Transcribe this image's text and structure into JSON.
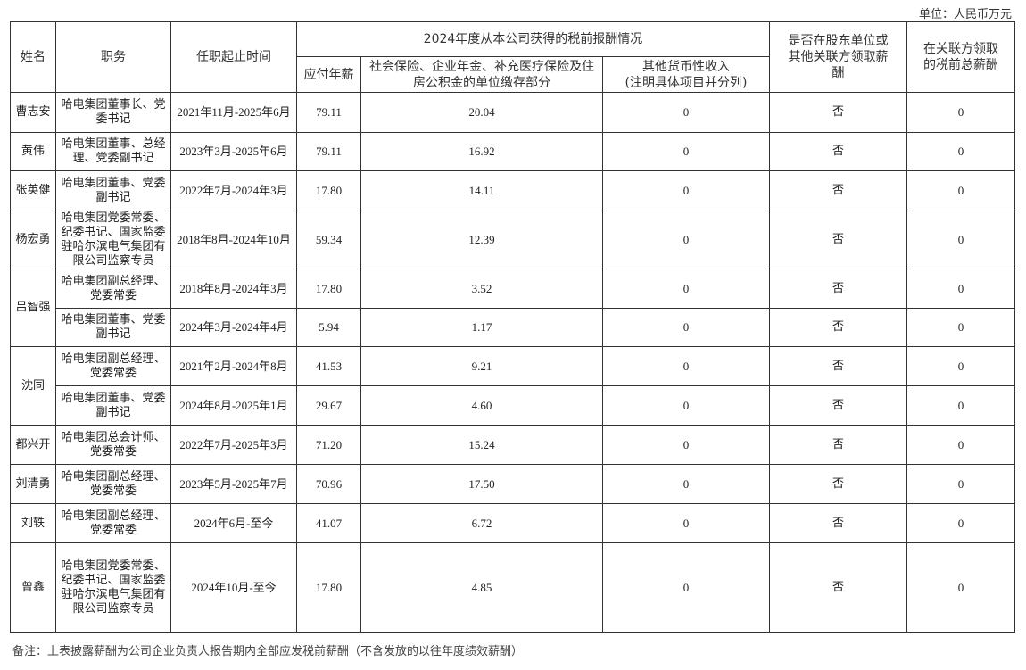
{
  "unit_label": "单位：人民币万元",
  "headers": {
    "name": "姓名",
    "position": "职务",
    "term": "任职起止时间",
    "group": "2024年度从本公司获得的税前报酬情况",
    "salary": "应付年薪",
    "insurance": "社会保险、企业年金、补充医疗保险及住房公积金的单位缴存部分",
    "other": "其他货币性收入\n(注明具体项目并分列)",
    "related": "是否在股东单位或其他关联方领取薪酬",
    "related_total": "在关联方领取的税前总薪酬"
  },
  "people": [
    {
      "name": "曹志安",
      "rows": [
        {
          "position": "哈电集团董事长、党委书记",
          "term": "2021年11月-2025年6月",
          "salary": "79.11",
          "insurance": "20.04",
          "other": "0",
          "related": "否",
          "related_total": "0"
        }
      ]
    },
    {
      "name": "黄伟",
      "rows": [
        {
          "position": "哈电集团董事、总经理、党委副书记",
          "term": "2023年3月-2025年6月",
          "salary": "79.11",
          "insurance": "16.92",
          "other": "0",
          "related": "否",
          "related_total": "0"
        }
      ]
    },
    {
      "name": "张英健",
      "rows": [
        {
          "position": "哈电集团董事、党委副书记",
          "term": "2022年7月-2024年3月",
          "salary": "17.80",
          "insurance": "14.11",
          "other": "0",
          "related": "否",
          "related_total": "0"
        }
      ]
    },
    {
      "name": "杨宏勇",
      "rows": [
        {
          "position": "哈电集团党委常委、纪委书记、国家监委驻哈尔滨电气集团有限公司监察专员",
          "term": "2018年8月-2024年10月",
          "salary": "59.34",
          "insurance": "12.39",
          "other": "0",
          "related": "否",
          "related_total": "0"
        }
      ]
    },
    {
      "name": "吕智强",
      "rows": [
        {
          "position": "哈电集团副总经理、党委常委",
          "term": "2018年8月-2024年3月",
          "salary": "17.80",
          "insurance": "3.52",
          "other": "0",
          "related": "否",
          "related_total": "0"
        },
        {
          "position": "哈电集团董事、党委副书记",
          "term": "2024年3月-2024年4月",
          "salary": "5.94",
          "insurance": "1.17",
          "other": "0",
          "related": "否",
          "related_total": "0"
        }
      ]
    },
    {
      "name": "沈同",
      "rows": [
        {
          "position": "哈电集团副总经理、党委常委",
          "term": "2021年2月-2024年8月",
          "salary": "41.53",
          "insurance": "9.21",
          "other": "0",
          "related": "否",
          "related_total": "0"
        },
        {
          "position": "哈电集团董事、党委副书记",
          "term": "2024年8月-2025年1月",
          "salary": "29.67",
          "insurance": "4.60",
          "other": "0",
          "related": "否",
          "related_total": "0"
        }
      ]
    },
    {
      "name": "都兴开",
      "rows": [
        {
          "position": "哈电集团总会计师、党委常委",
          "term": "2022年7月-2025年3月",
          "salary": "71.20",
          "insurance": "15.24",
          "other": "0",
          "related": "否",
          "related_total": "0"
        }
      ]
    },
    {
      "name": "刘清勇",
      "rows": [
        {
          "position": "哈电集团副总经理、党委常委",
          "term": "2023年5月-2025年7月",
          "salary": "70.96",
          "insurance": "17.50",
          "other": "0",
          "related": "否",
          "related_total": "0"
        }
      ]
    },
    {
      "name": "刘轶",
      "rows": [
        {
          "position": "哈电集团副总经理、党委常委",
          "term": "2024年6月-至今",
          "salary": "41.07",
          "insurance": "6.72",
          "other": "0",
          "related": "否",
          "related_total": "0"
        }
      ]
    },
    {
      "name": "曾鑫",
      "rows": [
        {
          "position": "哈电集团党委常委、纪委书记、国家监委驻哈尔滨电气集团有限公司监察专员",
          "term": "2024年10月-至今",
          "salary": "17.80",
          "insurance": "4.85",
          "other": "0",
          "related": "否",
          "related_total": "0"
        }
      ]
    }
  ],
  "footnote": "备注：上表披露薪酬为公司企业负责人报告期内全部应发税前薪酬（不含发放的以往年度绩效薪酬）"
}
